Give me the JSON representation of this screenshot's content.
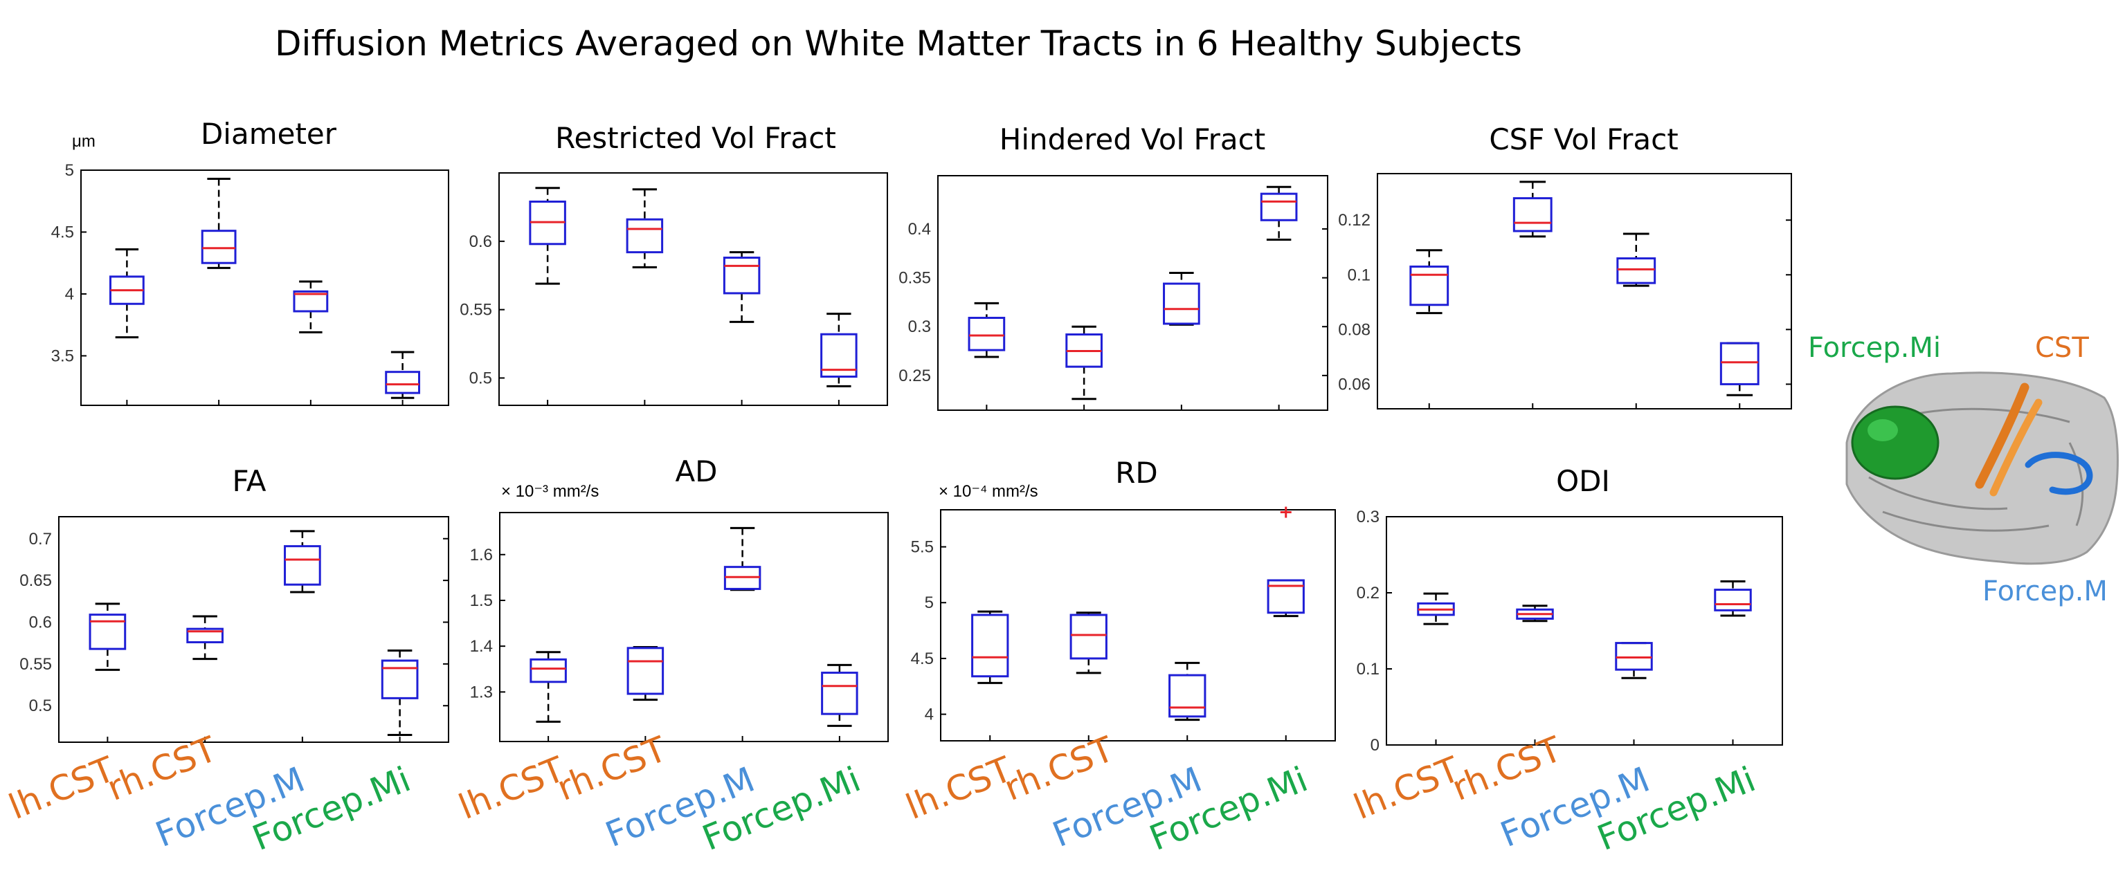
{
  "figure": {
    "title": "Diffusion Metrics Averaged on White Matter Tracts in 6 Healthy Subjects"
  },
  "colors": {
    "box": "#1f1fd6",
    "median": "#e8232a",
    "whisker": "#000000",
    "outlier": "#e8232a",
    "orange": "#e07020",
    "blue": "#4a90d9",
    "green": "#1aa84a"
  },
  "category_colors": [
    "orange",
    "orange",
    "blue",
    "green"
  ],
  "legend": {
    "forcep_mi": "Forcep.Mi",
    "cst": "CST",
    "forcep_m": "Forcep.M",
    "image": "brain-tracts-rendering"
  },
  "chart_data": [
    {
      "type": "box",
      "title": "Diameter",
      "unit": "μm",
      "categories": [
        "lh.CST",
        "rh.CST",
        "Forcep.M",
        "Forcep.Mi"
      ],
      "ylim": [
        3.1,
        5.0
      ],
      "yticks": [
        3.5,
        4,
        4.5,
        5
      ],
      "boxes": [
        {
          "min": 3.65,
          "q1": 3.92,
          "median": 4.03,
          "q3": 4.14,
          "max": 4.36
        },
        {
          "min": 4.21,
          "q1": 4.25,
          "median": 4.37,
          "q3": 4.51,
          "max": 4.93
        },
        {
          "min": 3.69,
          "q1": 3.86,
          "median": 4.0,
          "q3": 4.02,
          "max": 4.1
        },
        {
          "min": 3.16,
          "q1": 3.2,
          "median": 3.27,
          "q3": 3.37,
          "max": 3.53
        }
      ]
    },
    {
      "type": "box",
      "title": "Restricted Vol Fract",
      "unit": "",
      "categories": [
        "lh.CST",
        "rh.CST",
        "Forcep.M",
        "Forcep.Mi"
      ],
      "ylim": [
        0.48,
        0.65
      ],
      "yticks": [
        0.5,
        0.55,
        0.6
      ],
      "boxes": [
        {
          "min": 0.569,
          "q1": 0.598,
          "median": 0.614,
          "q3": 0.629,
          "max": 0.639
        },
        {
          "min": 0.581,
          "q1": 0.592,
          "median": 0.609,
          "q3": 0.616,
          "max": 0.638
        },
        {
          "min": 0.541,
          "q1": 0.562,
          "median": 0.582,
          "q3": 0.588,
          "max": 0.592
        },
        {
          "min": 0.494,
          "q1": 0.501,
          "median": 0.506,
          "q3": 0.532,
          "max": 0.547
        }
      ]
    },
    {
      "type": "box",
      "title": "Hindered Vol Fract",
      "unit": "",
      "categories": [
        "lh.CST",
        "rh.CST",
        "Forcep.M",
        "Forcep.Mi"
      ],
      "ylim": [
        0.2145,
        0.4545
      ],
      "yticks": [
        0.25,
        0.3,
        0.35,
        0.4
      ],
      "boxes": [
        {
          "min": 0.269,
          "q1": 0.276,
          "median": 0.291,
          "q3": 0.309,
          "max": 0.324
        },
        {
          "min": 0.226,
          "q1": 0.259,
          "median": 0.275,
          "q3": 0.292,
          "max": 0.3
        },
        {
          "min": 0.302,
          "q1": 0.303,
          "median": 0.318,
          "q3": 0.344,
          "max": 0.355
        },
        {
          "min": 0.389,
          "q1": 0.409,
          "median": 0.428,
          "q3": 0.436,
          "max": 0.443
        }
      ]
    },
    {
      "type": "box",
      "title": "CSF Vol Fract",
      "unit": "",
      "categories": [
        "lh.CST",
        "rh.CST",
        "Forcep.M",
        "Forcep.Mi"
      ],
      "ylim": [
        0.051,
        0.137
      ],
      "yticks": [
        0.06,
        0.08,
        0.1,
        0.12
      ],
      "boxes": [
        {
          "min": 0.086,
          "q1": 0.089,
          "median": 0.1,
          "q3": 0.103,
          "max": 0.109
        },
        {
          "min": 0.114,
          "q1": 0.116,
          "median": 0.119,
          "q3": 0.128,
          "max": 0.134
        },
        {
          "min": 0.096,
          "q1": 0.097,
          "median": 0.102,
          "q3": 0.106,
          "max": 0.115
        },
        {
          "min": 0.056,
          "q1": 0.06,
          "median": 0.068,
          "q3": 0.075,
          "max": 0.075
        }
      ]
    },
    {
      "type": "box",
      "title": "FA",
      "unit": "",
      "categories": [
        "lh.CST",
        "rh.CST",
        "Forcep.M",
        "Forcep.Mi"
      ],
      "ylim": [
        0.4563,
        0.7263
      ],
      "yticks": [
        0.5,
        0.55,
        0.6,
        0.65,
        0.7
      ],
      "boxes": [
        {
          "min": 0.543,
          "q1": 0.568,
          "median": 0.601,
          "q3": 0.609,
          "max": 0.622
        },
        {
          "min": 0.556,
          "q1": 0.576,
          "median": 0.589,
          "q3": 0.592,
          "max": 0.607
        },
        {
          "min": 0.636,
          "q1": 0.645,
          "median": 0.675,
          "q3": 0.691,
          "max": 0.709
        },
        {
          "min": 0.465,
          "q1": 0.509,
          "median": 0.545,
          "q3": 0.554,
          "max": 0.566
        }
      ]
    },
    {
      "type": "box",
      "title": "AD",
      "unit": "× 10⁻³ mm²/s",
      "categories": [
        "lh.CST",
        "rh.CST",
        "Forcep.M",
        "Forcep.Mi"
      ],
      "ylim": [
        1.1918,
        1.6918
      ],
      "yticks": [
        1.3,
        1.4,
        1.5,
        1.6
      ],
      "boxes": [
        {
          "min": 1.235,
          "q1": 1.322,
          "median": 1.351,
          "q3": 1.371,
          "max": 1.387
        },
        {
          "min": 1.283,
          "q1": 1.296,
          "median": 1.367,
          "q3": 1.396,
          "max": 1.398
        },
        {
          "min": 1.523,
          "q1": 1.525,
          "median": 1.551,
          "q3": 1.573,
          "max": 1.658
        },
        {
          "min": 1.226,
          "q1": 1.252,
          "median": 1.313,
          "q3": 1.342,
          "max": 1.359
        }
      ]
    },
    {
      "type": "box",
      "title": "RD",
      "unit": "× 10⁻⁴ mm²/s",
      "categories": [
        "lh.CST",
        "rh.CST",
        "Forcep.M",
        "Forcep.Mi"
      ],
      "ylim": [
        3.762,
        5.832
      ],
      "yticks": [
        4,
        4.5,
        5,
        5.5
      ],
      "boxes": [
        {
          "min": 4.28,
          "q1": 4.34,
          "median": 4.51,
          "q3": 4.89,
          "max": 4.92
        },
        {
          "min": 4.37,
          "q1": 4.5,
          "median": 4.71,
          "q3": 4.89,
          "max": 4.91
        },
        {
          "min": 3.95,
          "q1": 3.98,
          "median": 4.06,
          "q3": 4.35,
          "max": 4.46
        },
        {
          "min": 4.88,
          "q1": 4.91,
          "median": 5.15,
          "q3": 5.2,
          "max": 5.2,
          "outliers": [
            5.81
          ]
        }
      ]
    },
    {
      "type": "box",
      "title": "ODI",
      "unit": "",
      "categories": [
        "lh.CST",
        "rh.CST",
        "Forcep.M",
        "Forcep.Mi"
      ],
      "ylim": [
        0,
        0.3
      ],
      "yticks": [
        0,
        0.1,
        0.2,
        0.3
      ],
      "boxes": [
        {
          "min": 0.159,
          "q1": 0.171,
          "median": 0.178,
          "q3": 0.186,
          "max": 0.199
        },
        {
          "min": 0.163,
          "q1": 0.166,
          "median": 0.172,
          "q3": 0.178,
          "max": 0.183
        },
        {
          "min": 0.088,
          "q1": 0.099,
          "median": 0.115,
          "q3": 0.134,
          "max": 0.134
        },
        {
          "min": 0.17,
          "q1": 0.177,
          "median": 0.185,
          "q3": 0.204,
          "max": 0.215
        }
      ]
    }
  ]
}
